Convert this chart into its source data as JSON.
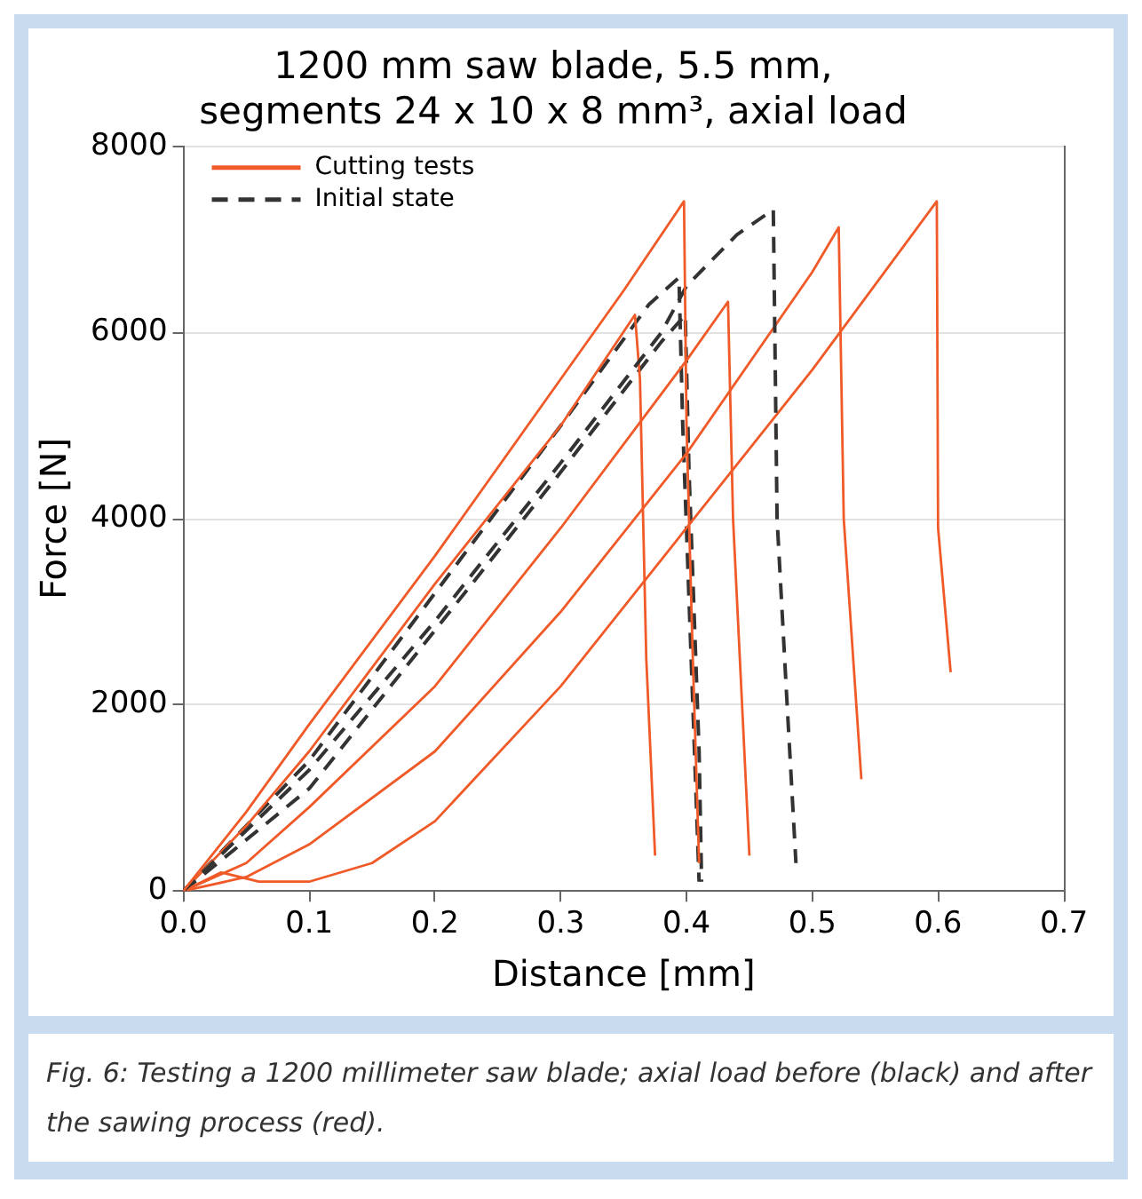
{
  "chart_data": {
    "type": "line",
    "title": "1200 mm saw blade, 5.5 mm,\nsegments 24 x 10 x 8 mm³, axial load",
    "xlabel": "Distance [mm]",
    "ylabel": "Force [N]",
    "xlim": [
      0,
      0.7
    ],
    "xticks": [
      {
        "value": 0,
        "label": "0.0"
      },
      {
        "value": 0.1,
        "label": "0.1"
      },
      {
        "value": 0.2,
        "label": "0.2"
      },
      {
        "value": 0.3,
        "label": "0.3"
      },
      {
        "value": 0.4,
        "label": "0.4"
      },
      {
        "value": 0.5,
        "label": "0.5"
      },
      {
        "value": 0.6,
        "label": "0.6"
      },
      {
        "value": 0.7,
        "label": "0.7"
      }
    ],
    "ylim": [
      0,
      8000
    ],
    "yticks": [
      0,
      2000,
      4000,
      6000,
      8000
    ],
    "grid": "y",
    "legend": "top left",
    "marker": "none",
    "series": [
      {
        "name": "Cutting tests",
        "color": "#f05a28",
        "line_style": "solid",
        "x": [
          0,
          0.05,
          0.1,
          0.2,
          0.3,
          0.35,
          0.398,
          0.4,
          0.405,
          0.41
        ],
        "values": [
          0,
          850,
          1790,
          3600,
          5500,
          6450,
          7410,
          5000,
          2500,
          300
        ]
      },
      {
        "name": "Initial state",
        "color": "#333333",
        "line_style": "dashed",
        "x": [
          0,
          0.1,
          0.2,
          0.3,
          0.38,
          0.4,
          0.44,
          0.469,
          0.472,
          0.48,
          0.487
        ],
        "values": [
          0,
          1300,
          2900,
          4600,
          6000,
          6500,
          7050,
          7320,
          4000,
          2000,
          300
        ]
      },
      {
        "color": "#f05a28",
        "line_style": "solid",
        "x": [
          0,
          0.05,
          0.1,
          0.2,
          0.3,
          0.359,
          0.363,
          0.368,
          0.375
        ],
        "values": [
          0,
          700,
          1500,
          3300,
          5000,
          6190,
          5500,
          2500,
          380
        ]
      },
      {
        "color": "#f05a28",
        "line_style": "solid",
        "x": [
          0,
          0.05,
          0.1,
          0.2,
          0.3,
          0.4,
          0.433,
          0.437,
          0.45
        ],
        "values": [
          0,
          300,
          900,
          2200,
          3900,
          5700,
          6330,
          4000,
          380
        ]
      },
      {
        "color": "#f05a28",
        "line_style": "solid",
        "x": [
          0,
          0.05,
          0.1,
          0.2,
          0.3,
          0.4,
          0.5,
          0.521,
          0.525,
          0.539
        ],
        "values": [
          0,
          150,
          500,
          1500,
          3000,
          4700,
          6650,
          7130,
          4000,
          1200
        ]
      },
      {
        "color": "#f05a28",
        "line_style": "solid",
        "x": [
          0,
          0.03,
          0.06,
          0.1,
          0.15,
          0.2,
          0.3,
          0.4,
          0.5,
          0.599,
          0.6,
          0.61
        ],
        "values": [
          0,
          200,
          100,
          100,
          300,
          750,
          2200,
          3900,
          5600,
          7410,
          3900,
          2350
        ]
      },
      {
        "color": "#333333",
        "line_style": "dashed",
        "x": [
          0,
          0.1,
          0.2,
          0.3,
          0.37,
          0.394,
          0.397,
          0.405,
          0.41
        ],
        "values": [
          0,
          1400,
          3200,
          5000,
          6300,
          6590,
          5000,
          2000,
          100
        ]
      },
      {
        "color": "#333333",
        "line_style": "dashed",
        "x": [
          0,
          0.1,
          0.2,
          0.3,
          0.38,
          0.399,
          0.402,
          0.41,
          0.412
        ],
        "values": [
          0,
          1100,
          2800,
          4500,
          5900,
          6190,
          4500,
          1500,
          100
        ]
      }
    ],
    "annotations": [
      "Fig. 6: Testing a 1200 millimeter saw blade; axial load before (black) and after the sawing process (red)."
    ]
  }
}
